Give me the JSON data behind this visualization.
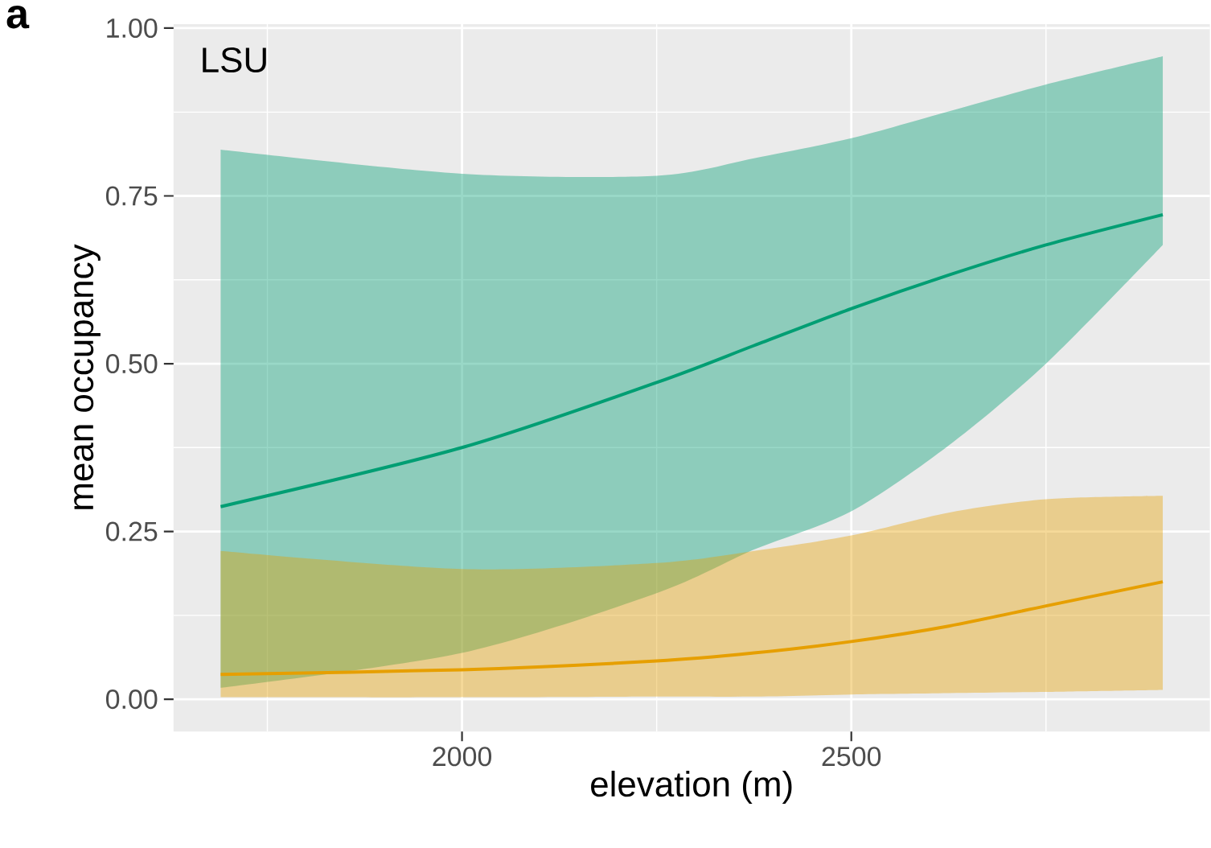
{
  "chart_data": {
    "type": "line",
    "xlabel": "elevation (m)",
    "ylabel": "mean occupancy",
    "annotations": [
      "LSU",
      "a"
    ],
    "xlim": [
      1629.5,
      2960.5
    ],
    "ylim": [
      -0.048,
      1.006
    ],
    "xticks": [
      2000,
      2500
    ],
    "yticks": [
      {
        "value": 0,
        "label": "0.00"
      },
      {
        "value": 0.25,
        "label": "0.25"
      },
      {
        "value": 0.5,
        "label": "0.50"
      },
      {
        "value": 0.75,
        "label": "0.75"
      },
      {
        "value": 1,
        "label": "1.00"
      }
    ],
    "grid": true,
    "x": [
      1690,
      2000,
      2250,
      2375,
      2500,
      2625,
      2750,
      2900
    ],
    "series": [
      {
        "color": "#009e73",
        "values": [
          0.287,
          0.375,
          0.472,
          0.527,
          0.582,
          0.632,
          0.677,
          0.722
        ],
        "lower": [
          0.017,
          0.069,
          0.158,
          0.223,
          0.28,
          0.378,
          0.5,
          0.677
        ],
        "upper": [
          0.819,
          0.783,
          0.78,
          0.806,
          0.836,
          0.876,
          0.916,
          0.958
        ]
      },
      {
        "color": "#e69f00",
        "values": [
          0.037,
          0.044,
          0.057,
          0.069,
          0.086,
          0.109,
          0.139,
          0.175
        ],
        "lower": [
          0.003,
          0.003,
          0.004,
          0.004,
          0.007,
          0.009,
          0.011,
          0.014
        ],
        "upper": [
          0.221,
          0.194,
          0.203,
          0.221,
          0.244,
          0.278,
          0.298,
          0.303
        ]
      }
    ]
  }
}
